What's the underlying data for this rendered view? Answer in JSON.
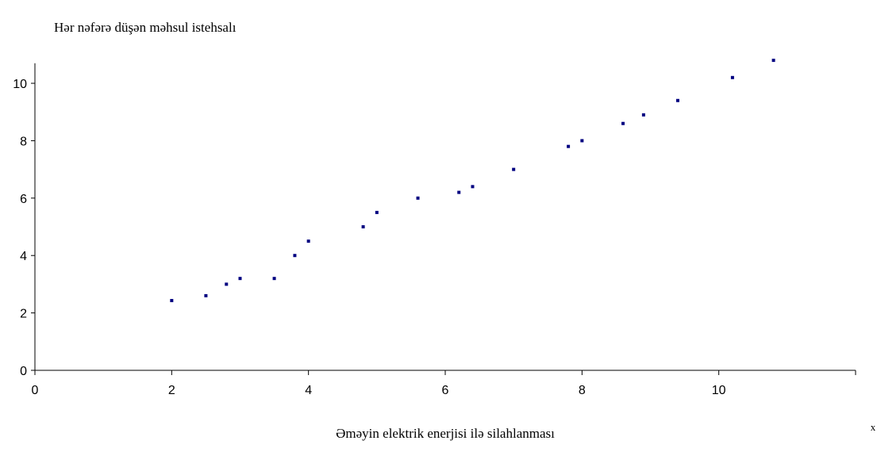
{
  "chart_data": {
    "type": "scatter",
    "y_label": "Hər nəfərə düşən məhsul istehsalı",
    "x_label": "Əməyin elektrik enerjisi ilə silahlanması",
    "x_axis_mark": "x",
    "x": [
      2,
      2.5,
      2.8,
      3,
      3.5,
      3.8,
      4,
      4.8,
      5,
      5.6,
      6.2,
      6.4,
      7,
      7.8,
      8,
      8.6,
      8.9,
      9.4,
      10.2,
      10.8
    ],
    "values": [
      2.43,
      2.6,
      3.0,
      3.2,
      3.2,
      4.0,
      4.5,
      5.0,
      5.5,
      6.0,
      6.2,
      6.4,
      7.0,
      7.8,
      8.0,
      8.6,
      8.9,
      9.4,
      10.2,
      10.8
    ],
    "color": "#000080",
    "xlim": [
      0,
      12
    ],
    "xticks": [
      0,
      2,
      4,
      6,
      8,
      10
    ],
    "ylim": [
      0,
      10.7
    ],
    "yticks": [
      0,
      2,
      4,
      6,
      8,
      10
    ],
    "grid": false
  }
}
